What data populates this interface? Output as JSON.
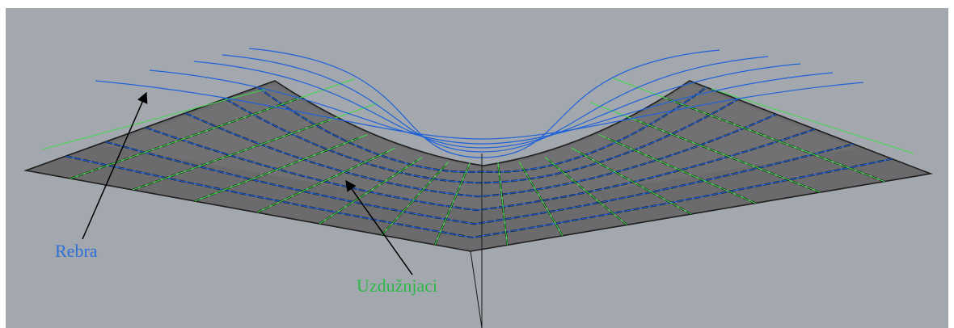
{
  "labels": {
    "ribs": "Rebra",
    "stringers": "Uzdužnjaci"
  },
  "colors": {
    "viewport_background": "#a3a8ae",
    "panel_surface": "#6b6b6d",
    "rib_lines": "#1f62d8",
    "stringer_lines": "#3fd94a",
    "ribs_label": "#2d6fd8",
    "stringers_label": "#2db84a",
    "arrows": "#000000"
  }
}
